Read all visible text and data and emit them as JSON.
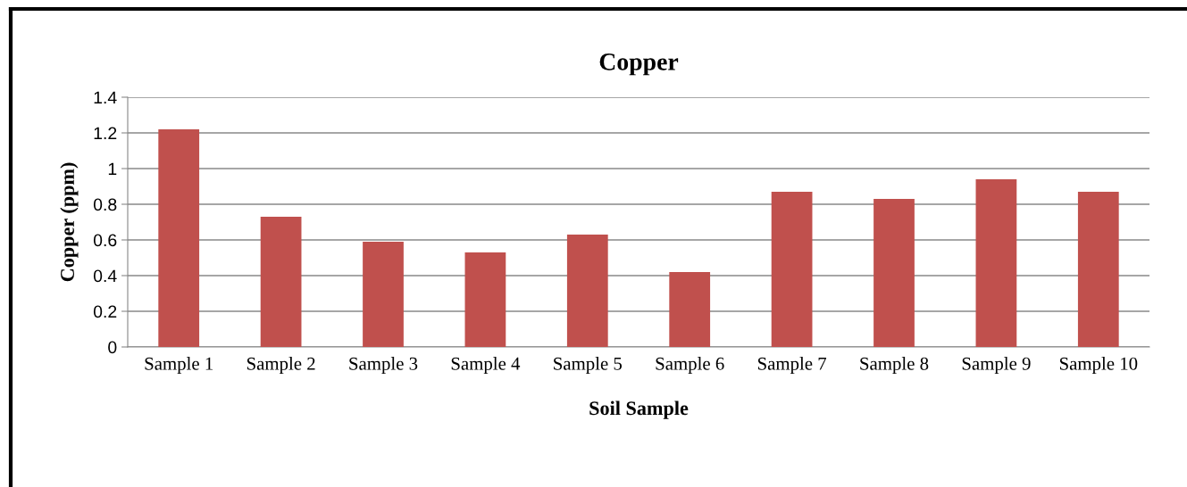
{
  "chart_data": {
    "type": "bar",
    "title": "Copper",
    "xlabel": "Soil Sample",
    "ylabel": "Copper (ppm)",
    "categories": [
      "Sample 1",
      "Sample 2",
      "Sample 3",
      "Sample 4",
      "Sample 5",
      "Sample 6",
      "Sample 7",
      "Sample 8",
      "Sample 9",
      "Sample 10"
    ],
    "values": [
      1.22,
      0.73,
      0.59,
      0.53,
      0.63,
      0.42,
      0.87,
      0.83,
      0.94,
      0.87
    ],
    "color": "#c0504d",
    "ylim": [
      0,
      1.4
    ],
    "yticks": [
      0,
      0.2,
      0.4,
      0.6,
      0.8,
      1,
      1.2,
      1.4
    ],
    "grid": "y",
    "legend": false
  }
}
